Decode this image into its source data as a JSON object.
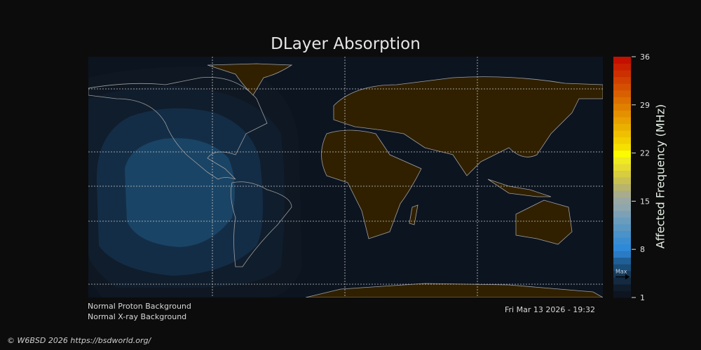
{
  "chart_data": {
    "type": "heatmap",
    "title": "DLayer Absorption",
    "colorbar": {
      "label": "Affected Frequency (MHz)",
      "range": [
        1,
        36
      ],
      "ticks": [
        "36",
        "29",
        "22",
        "15",
        "8",
        "1"
      ],
      "marker_label": "Max",
      "marker_value": 4,
      "colors": [
        "#0e1520",
        "#101c2a",
        "#132a40",
        "#163a58",
        "#1a4d78",
        "#1f5f95",
        "#2a7bc4",
        "#2e8ad8",
        "#3a8ed0",
        "#4a92c8",
        "#5a98c2",
        "#6a9cbd",
        "#7ca0b6",
        "#8ea6ae",
        "#9aa8a4",
        "#a8ac8c",
        "#b8b46c",
        "#c8c050",
        "#d8cc40",
        "#e6dc30",
        "#f0ea20",
        "#fcfc00",
        "#f6e000",
        "#f2d000",
        "#eec000",
        "#eab000",
        "#e8a000",
        "#e49000",
        "#e08000",
        "#dc7000",
        "#d86000",
        "#d45000",
        "#d04000",
        "#cc3000",
        "#c82000",
        "#c41000"
      ]
    },
    "contour_levels_shown": [
      1,
      2,
      3,
      4
    ],
    "max_center": "Eastern Pacific near Central America"
  },
  "status": {
    "proton": "Normal Proton Background",
    "xray": "Normal X-ray Background",
    "timestamp": "Fri Mar 13 2026 - 19:32"
  },
  "credit": "© W6BSD 2026 https://bsdworld.org/",
  "colors": {
    "background": "#0c0c0c",
    "ocean": "#0c1420",
    "land": "#302000",
    "coast": "#a0a0a0"
  }
}
